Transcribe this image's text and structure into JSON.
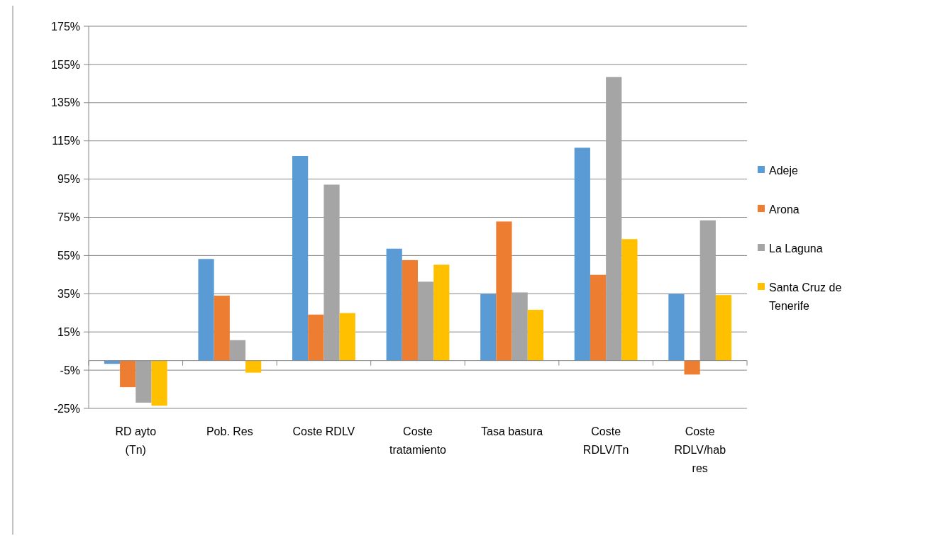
{
  "chart_data": {
    "type": "bar",
    "categories": [
      "RD ayto (Tn)",
      "Pob. Res",
      "Coste RDLV",
      "Coste tratamiento",
      "Tasa basura",
      "Coste RDLV/Tn",
      "Coste RDLV/hab res"
    ],
    "series": [
      {
        "name": "Adeje",
        "color": "#5b9bd5",
        "values": [
          -1.7,
          53.2,
          107.1,
          58.6,
          34.9,
          111.4,
          34.9
        ]
      },
      {
        "name": "Arona",
        "color": "#ed7d31",
        "values": [
          -13.9,
          34.0,
          24.1,
          52.6,
          72.8,
          44.9,
          -7.3
        ]
      },
      {
        "name": "La Laguna",
        "color": "#a5a5a5",
        "values": [
          -22.0,
          10.7,
          92.1,
          41.3,
          35.7,
          148.4,
          73.4
        ]
      },
      {
        "name": "Santa Cruz de Tenerife",
        "color": "#ffc000",
        "values": [
          -23.6,
          -6.3,
          24.9,
          50.2,
          26.6,
          63.6,
          34.3
        ]
      }
    ],
    "ylim": [
      -25,
      175
    ],
    "yticks": [
      {
        "value": -25,
        "label": "-25%"
      },
      {
        "value": -5,
        "label": "-5%"
      },
      {
        "value": 15,
        "label": "15%"
      },
      {
        "value": 35,
        "label": "35%"
      },
      {
        "value": 55,
        "label": "55%"
      },
      {
        "value": 75,
        "label": "75%"
      },
      {
        "value": 95,
        "label": "95%"
      },
      {
        "value": 115,
        "label": "115%"
      },
      {
        "value": 135,
        "label": "135%"
      },
      {
        "value": 155,
        "label": "155%"
      },
      {
        "value": 175,
        "label": "175%"
      }
    ],
    "grid": "y",
    "legend": "right"
  }
}
